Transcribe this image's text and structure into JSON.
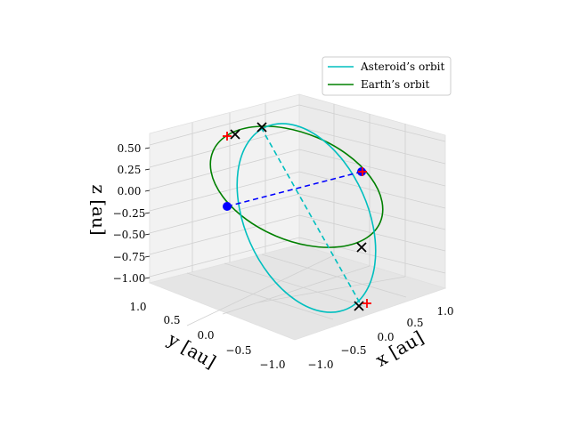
{
  "chart_data": {
    "type": "line",
    "projection": "3d",
    "title": "",
    "axes": {
      "x": {
        "label": "x [au]",
        "ticks": [
          "−1.0",
          "−0.5",
          "0.0",
          "0.5",
          "1.0"
        ]
      },
      "y": {
        "label": "y [au]",
        "ticks": [
          "1.0",
          "0.5",
          "0.0",
          "−0.5",
          "−1.0"
        ]
      },
      "z": {
        "label": "z [au]",
        "ticks": [
          "0.50",
          "0.25",
          "0.00",
          "−0.25",
          "−0.50",
          "−0.75",
          "−1.00"
        ]
      }
    },
    "grid": true,
    "legend_position": "upper-right",
    "series": [
      {
        "name": "Asteroid’s orbit",
        "color": "#00bfbf",
        "kind": "ellipse"
      },
      {
        "name": "Earth’s orbit",
        "color": "#008000",
        "kind": "ellipse"
      }
    ],
    "markers": {
      "node_points": {
        "color": "#0000ff",
        "shape": "filled-circle",
        "count": 2
      },
      "crosses": {
        "color": "#000000",
        "shape": "x",
        "count": 4
      },
      "plus_marks": {
        "color": "#ff0000",
        "shape": "+",
        "count": 3
      }
    },
    "lines": {
      "node_line": {
        "color": "#0000ff",
        "style": "dashed"
      },
      "asteroid_axis": {
        "color": "#00bfbf",
        "style": "dashed"
      }
    }
  }
}
